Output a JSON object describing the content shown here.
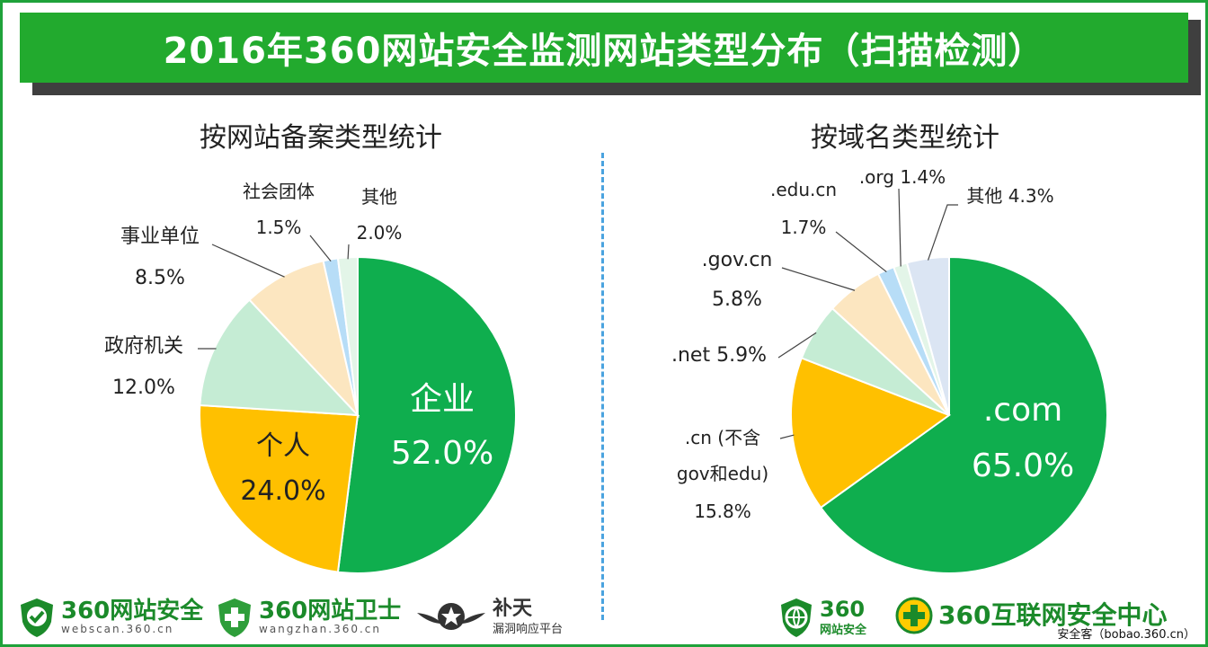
{
  "title": "2016年360网站安全监测网站类型分布（扫描检测）",
  "credit": "安全客（bobao.360.cn）",
  "colors": {
    "banner": "#22aa2e",
    "green": "#0fae4e",
    "orange": "#ffc000",
    "mint": "#c5ecd4",
    "peach": "#fce6c0",
    "light_blue": "#b7ddf7",
    "pale_green": "#e3f5e8",
    "pale_blue": "#dbe5f3"
  },
  "logos": {
    "webscan": {
      "name": "360网站安全",
      "url": "webscan.360.cn",
      "icon": "shield-check-icon"
    },
    "wangzhan": {
      "name": "360网站卫士",
      "url": "wangzhan.360.cn",
      "icon": "shield-plus-icon"
    },
    "butian": {
      "name": "补天",
      "sub": "漏洞响应平台",
      "icon": "star-wings-icon"
    },
    "jiankong": {
      "name": "360",
      "sub": "网站安全",
      "icon": "shield-globe-icon"
    },
    "center": {
      "name": "360互联网安全中心",
      "icon": "plus-circle-icon"
    }
  },
  "chart_data": [
    {
      "type": "pie",
      "title": "按网站备案类型统计",
      "categories": [
        "企业",
        "个人",
        "政府机关",
        "事业单位",
        "社会团体",
        "其他"
      ],
      "values": [
        52.0,
        24.0,
        12.0,
        8.5,
        1.5,
        2.0
      ],
      "labels": [
        "52.0%",
        "24.0%",
        "12.0%",
        "8.5%",
        "1.5%",
        "2.0%"
      ],
      "colors": [
        "#0fae4e",
        "#ffc000",
        "#c5ecd4",
        "#fce6c0",
        "#b7ddf7",
        "#e3f5e8"
      ],
      "unit": "%"
    },
    {
      "type": "pie",
      "title": "按域名类型统计",
      "categories": [
        ".com",
        ".cn (不含gov和edu)",
        ".net",
        ".gov.cn",
        ".edu.cn",
        ".org",
        "其他"
      ],
      "values": [
        65.0,
        15.8,
        5.9,
        5.8,
        1.7,
        1.4,
        4.3
      ],
      "labels": [
        "65.0%",
        "15.8%",
        "5.9%",
        "5.8%",
        "1.7%",
        "1.4%",
        "4.3%"
      ],
      "colors": [
        "#0fae4e",
        "#ffc000",
        "#c5ecd4",
        "#fce6c0",
        "#b7ddf7",
        "#e3f5e8",
        "#dbe5f3"
      ],
      "unit": "%"
    }
  ]
}
